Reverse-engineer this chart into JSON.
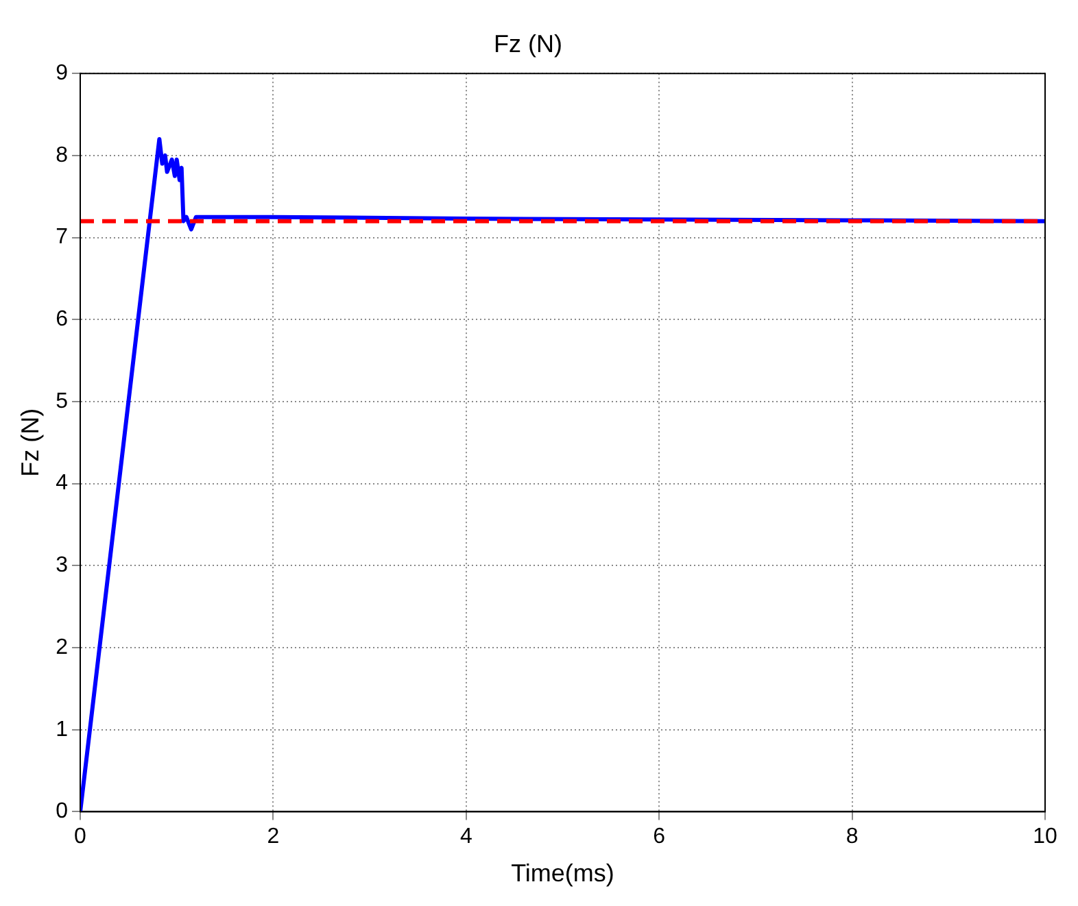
{
  "chart_data": {
    "type": "line",
    "title": "Fz (N)",
    "xlabel": "Time(ms)",
    "ylabel": "Fz (N)",
    "x": [
      0,
      0.82,
      0.85,
      0.88,
      0.9,
      0.95,
      0.98,
      1.0,
      1.03,
      1.05,
      1.07,
      1.1,
      1.15,
      1.2,
      2,
      4,
      6,
      8,
      10
    ],
    "series": [
      {
        "color": "#0000ff",
        "values": [
          0,
          8.2,
          7.9,
          8.0,
          7.8,
          7.95,
          7.75,
          7.95,
          7.7,
          7.85,
          7.2,
          7.25,
          7.1,
          7.25,
          7.25,
          7.23,
          7.22,
          7.21,
          7.2
        ]
      }
    ],
    "xlim": [
      0,
      10
    ],
    "xticks": [
      0,
      2,
      4,
      6,
      8,
      10
    ],
    "ylim": [
      0,
      9
    ],
    "yticks": [
      0,
      1,
      2,
      3,
      4,
      5,
      6,
      7,
      8,
      9
    ],
    "ref_lines": [
      {
        "axis": "y",
        "value": 7.2,
        "color": "#ff0000",
        "line_style": "dashed"
      }
    ],
    "grid": true,
    "marker": "none",
    "line_style": "solid"
  }
}
